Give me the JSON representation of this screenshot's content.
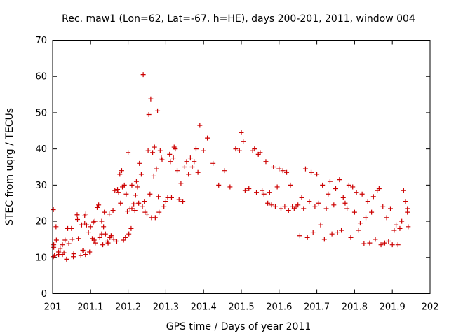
{
  "chart_data": {
    "type": "scatter",
    "title": "Rec. maw1 (Lon=62, Lat=-67, h=HE), days 200-201, 2011, window 004",
    "xlabel": "GPS time / Days of year 2011",
    "ylabel": "STEC from uqrg / TECUs",
    "xlim": [
      201,
      202
    ],
    "ylim": [
      0,
      70
    ],
    "x_ticks": [
      "201",
      "201.1",
      "201.2",
      "201.3",
      "201.4",
      "201.5",
      "201.6",
      "201.7",
      "201.8",
      "201.9",
      "202"
    ],
    "y_ticks": [
      "0",
      "10",
      "20",
      "30",
      "40",
      "50",
      "60",
      "70"
    ],
    "grid": false,
    "legend": "none",
    "marker": "+",
    "color": "#cc0000",
    "series": [
      {
        "x": [
          201.002,
          201.002,
          201.003,
          201.003,
          201.005,
          201.009,
          201.01,
          201.016,
          201.016,
          201.02,
          201.026,
          201.026,
          201.03,
          201.033,
          201.037,
          201.04,
          201.043,
          201.05,
          201.052,
          201.055,
          201.056,
          201.065,
          201.066,
          201.068,
          201.075,
          201.077,
          201.082,
          201.08,
          201.085,
          201.085,
          201.087,
          201.088,
          201.09,
          201.095,
          201.1,
          201.098,
          201.105,
          201.108,
          201.11,
          201.112,
          201.113,
          201.118,
          201.122,
          201.125,
          201.13,
          201.13,
          201.133,
          201.135,
          201.137,
          201.14,
          201.145,
          201.147,
          201.15,
          201.152,
          201.155,
          201.16,
          201.162,
          201.165,
          201.17,
          201.172,
          201.175,
          201.178,
          201.18,
          201.183,
          201.185,
          201.188,
          201.19,
          201.193,
          201.195,
          201.198,
          201.2,
          201.202,
          201.205,
          201.208,
          201.21,
          201.21,
          201.215,
          201.218,
          201.22,
          201.222,
          201.225,
          201.228,
          201.23,
          201.235,
          201.238,
          201.24,
          201.243,
          201.245,
          201.25,
          201.253,
          201.255,
          201.258,
          201.26,
          201.262,
          201.265,
          201.268,
          201.27,
          201.272,
          201.275,
          201.278,
          201.28,
          201.282,
          201.285,
          201.288,
          201.29,
          201.295,
          201.3,
          201.305,
          201.305,
          201.31,
          201.312,
          201.315,
          201.32,
          201.322,
          201.325,
          201.33,
          201.335,
          201.34,
          201.345,
          201.35,
          201.355,
          201.36,
          201.365,
          201.37,
          201.375,
          201.38,
          201.385,
          201.39,
          201.4,
          201.41,
          201.425,
          201.44,
          201.455,
          201.47,
          201.485,
          201.495,
          201.5,
          201.505,
          201.51,
          201.52,
          201.53,
          201.535,
          201.54,
          201.545,
          201.55,
          201.555,
          201.56,
          201.565,
          201.57,
          201.575,
          201.58,
          201.585,
          201.59,
          201.595,
          201.6,
          201.605,
          201.61,
          201.615,
          201.62,
          201.625,
          201.63,
          201.635,
          201.64,
          201.645,
          201.65,
          201.655,
          201.66,
          201.665,
          201.67,
          201.675,
          201.68,
          201.685,
          201.69,
          201.695,
          201.7,
          201.705,
          201.71,
          201.715,
          201.72,
          201.725,
          201.73,
          201.735,
          201.74,
          201.745,
          201.75,
          201.755,
          201.76,
          201.765,
          201.77,
          201.775,
          201.78,
          201.785,
          201.79,
          201.795,
          201.8,
          201.805,
          201.81,
          201.815,
          201.82,
          201.825,
          201.83,
          201.835,
          201.84,
          201.845,
          201.85,
          201.855,
          201.86,
          201.865,
          201.87,
          201.875,
          201.88,
          201.885,
          201.89,
          201.895,
          201.9,
          201.905,
          201.91,
          201.915,
          201.92,
          201.925,
          201.93,
          201.935,
          201.94,
          201.94,
          201.942
        ],
        "y": [
          23.2,
          10.2,
          13.5,
          12.8,
          10.5,
          18.5,
          14.8,
          10.8,
          11.5,
          12.5,
          13.5,
          10.8,
          11.3,
          14.8,
          9.5,
          18.0,
          13.8,
          18.0,
          15.0,
          10.2,
          11.0,
          21.8,
          20.5,
          15.2,
          10.5,
          19.0,
          11.8,
          12.0,
          21.5,
          19.5,
          10.8,
          22.0,
          19.0,
          17.0,
          18.5,
          11.5,
          15.2,
          19.8,
          14.8,
          20.0,
          14.0,
          23.8,
          24.5,
          15.5,
          20.0,
          16.5,
          13.5,
          18.5,
          22.5,
          16.5,
          14.5,
          14.0,
          22.0,
          15.5,
          16.0,
          23.0,
          15.0,
          28.5,
          14.5,
          28.8,
          28.0,
          33.0,
          25.0,
          34.0,
          29.5,
          14.8,
          30.0,
          15.5,
          27.5,
          22.8,
          39.0,
          16.5,
          23.5,
          18.0,
          30.0,
          23.5,
          24.8,
          23.0,
          27.2,
          31.0,
          29.5,
          25.0,
          36.0,
          33.0,
          24.0,
          60.5,
          25.5,
          22.5,
          22.0,
          39.5,
          49.5,
          27.5,
          53.8,
          21.0,
          39.0,
          32.5,
          40.5,
          21.0,
          34.5,
          50.5,
          26.8,
          22.5,
          39.5,
          37.5,
          37.0,
          24.0,
          25.5,
          26.5,
          26.5,
          38.5,
          36.5,
          26.5,
          37.5,
          40.5,
          40.0,
          34.0,
          26.0,
          30.5,
          25.5,
          35.0,
          36.5,
          33.0,
          37.5,
          35.0,
          36.5,
          40.0,
          33.5,
          46.5,
          39.5,
          43.0,
          36.0,
          30.0,
          34.0,
          29.5,
          40.0,
          39.5,
          44.5,
          42.0,
          28.5,
          29.0,
          39.5,
          40.0,
          28.0,
          38.5,
          39.0,
          28.5,
          27.5,
          36.5,
          25.0,
          28.0,
          24.5,
          35.0,
          24.0,
          29.5,
          34.5,
          23.5,
          34.0,
          24.0,
          33.5,
          23.0,
          30.0,
          24.0,
          23.5,
          24.0,
          24.5,
          16.0,
          26.5,
          23.5,
          34.5,
          15.5,
          25.5,
          33.5,
          17.0,
          24.0,
          33.0,
          25.0,
          19.0,
          30.0,
          15.0,
          23.5,
          27.5,
          31.0,
          16.5,
          24.5,
          29.0,
          17.0,
          31.5,
          17.5,
          26.5,
          25.0,
          23.5,
          30.0,
          15.5,
          29.5,
          22.5,
          28.0,
          17.5,
          19.5,
          27.5,
          13.8,
          21.0,
          25.5,
          14.0,
          22.5,
          26.8,
          15.0,
          28.5,
          29.0,
          13.5,
          24.0,
          14.0,
          21.0,
          14.5,
          23.5,
          13.5,
          17.5,
          19.0,
          13.5,
          18.0,
          20.0,
          28.5,
          25.5,
          23.5,
          22.5,
          18.5
        ]
      }
    ]
  }
}
